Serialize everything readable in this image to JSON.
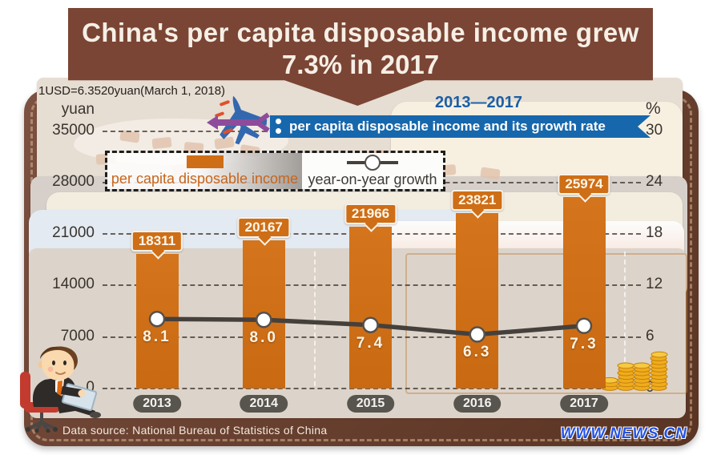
{
  "title": {
    "line1": "China's per capita disposable income grew",
    "line2": "7.3% in 2017"
  },
  "note": "1USD=6.3520yuan(March 1, 2018)",
  "period": "2013—2017",
  "ribbon_label": "per capita disposable income and its growth rate",
  "legend": {
    "bar_label": "per capita disposable income",
    "line_label": "year-on-year growth"
  },
  "axes": {
    "left_unit": "yuan",
    "right_unit": "%"
  },
  "footer": {
    "source": "Data source: National Bureau of Statistics of China",
    "watermark": "www.news.cn"
  },
  "chart_data": {
    "type": "bar",
    "title": "China's per capita disposable income grew 7.3% in 2017",
    "period": "2013—2017",
    "categories": [
      "2013",
      "2014",
      "2015",
      "2016",
      "2017"
    ],
    "series": [
      {
        "name": "per capita disposable income",
        "type": "bar",
        "unit": "yuan",
        "values": [
          18311,
          20167,
          21966,
          23821,
          25974
        ],
        "display": [
          "18311",
          "20167",
          "21966",
          "23821",
          "25974"
        ]
      },
      {
        "name": "year-on-year growth",
        "type": "line",
        "unit": "%",
        "values": [
          8.1,
          8.0,
          7.4,
          6.3,
          7.3
        ],
        "display": [
          "8.1",
          "8.0",
          "7.4",
          "6.3",
          "7.3"
        ]
      }
    ],
    "left_axis": {
      "label": "yuan",
      "range": [
        0,
        35000
      ],
      "ticks": [
        0,
        7000,
        14000,
        21000,
        28000,
        35000
      ]
    },
    "right_axis": {
      "label": "%",
      "range": [
        0,
        30
      ],
      "ticks": [
        0,
        6,
        12,
        18,
        24,
        30
      ]
    },
    "grid": "dashed",
    "legend_position": "top-left"
  },
  "colors": {
    "bar": "#CE6E16",
    "line": "#45403B",
    "ribbon_bg": "#1767AC",
    "title_bg": "#7A4534",
    "period_text": "#1B5FA5",
    "watermark_blue": "#2253E6",
    "leather": "#6D4434"
  }
}
